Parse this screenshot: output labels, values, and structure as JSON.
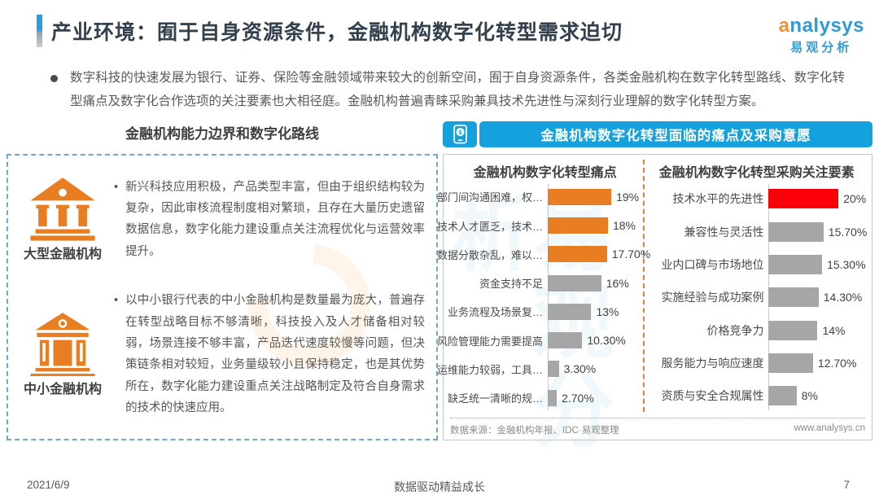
{
  "page": {
    "title": "产业环境：囿于自身资源条件，金融机构数字化转型需求迫切",
    "intro": "数字科技的快速发展为银行、证券、保险等金融领域带来较大的创新空间，囿于自身资源条件，各类金融机构在数字化转型路线、数字化转型痛点及数字化合作选项的关注要素也大相径庭。金融机构普遍青睐采购兼具技术先进性与深刻行业理解的数字化转型方案。",
    "footer": {
      "date": "2021/6/9",
      "slogan": "数据驱动精益成长",
      "page_number": "7"
    }
  },
  "logo": {
    "brand": "analysys",
    "brand_cn": "易观分析",
    "watermark": "易观分析"
  },
  "left_section": {
    "title": "金融机构能力边界和数字化路线",
    "items": [
      {
        "icon": "bank-large-icon",
        "label": "大型金融机构",
        "text": "新兴科技应用积极，产品类型丰富，但由于组织结构较为复杂，因此审核流程制度相对繁琐，且存在大量历史遗留数据信息，数字化能力建设重点关注流程优化与运营效率提升。"
      },
      {
        "icon": "bank-small-icon",
        "label": "中小金融机构",
        "text": "以中小银行代表的中小金融机构是数量最为庞大，普遍存在转型战略目标不够清晰，科技投入及人才储备相对较弱，场景连接不够丰富，产品迭代速度较慢等问题，但决策链条相对较短，业务量级较小且保持稳定，也是其优势所在，数字化能力建设重点关注战略制定及符合自身需求的技术的快速应用。"
      }
    ]
  },
  "right_section": {
    "header": "金融机构数字化转型面临的痛点及采购意愿",
    "source": "数据来源：金融机构年报、IDC·易观整理",
    "website": "www.analysys.cn"
  },
  "colors": {
    "accent_blue": "#14A1DD",
    "title_navy": "#33404E",
    "orange": "#E87D21",
    "bar_orange": "#E87D21",
    "bar_gray": "#A6A6A6",
    "bar_red": "#FB0007",
    "dashed_border_blue": "#6FA7D7",
    "divider_orange": "#ED7D31"
  },
  "chart_data": [
    {
      "type": "bar",
      "orientation": "horizontal",
      "title": "金融机构数字化转型痛点",
      "categories": [
        "部门间沟通困难，权…",
        "技术人才匮乏，技术…",
        "数据分散杂乱，难以…",
        "资金支持不足",
        "业务流程及场景复…",
        "风险管理能力需要提高",
        "运维能力较弱，工具…",
        "缺乏统一清晰的规…"
      ],
      "values": [
        19,
        18,
        17.7,
        16,
        13,
        10.3,
        3.3,
        2.7
      ],
      "labels": [
        "19%",
        "18%",
        "17.70%",
        "16%",
        "13%",
        "10.30%",
        "3.30%",
        "2.70%"
      ],
      "bar_colors": [
        "#E87D21",
        "#E87D21",
        "#E87D21",
        "#A6A6A6",
        "#A6A6A6",
        "#A6A6A6",
        "#A6A6A6",
        "#A6A6A6"
      ],
      "xlim": [
        0,
        20
      ],
      "grid": false,
      "legend": false
    },
    {
      "type": "bar",
      "orientation": "horizontal",
      "title": "金融机构数字化转型采购关注要素",
      "categories": [
        "技术水平的先进性",
        "兼容性与灵活性",
        "业内口碑与市场地位",
        "实施经验与成功案例",
        "价格竞争力",
        "服务能力与响应速度",
        "资质与安全合规属性"
      ],
      "values": [
        20,
        15.7,
        15.3,
        14.3,
        14,
        12.7,
        8
      ],
      "labels": [
        "20%",
        "15.70%",
        "15.30%",
        "14.30%",
        "14%",
        "12.70%",
        "8%"
      ],
      "bar_colors": [
        "#FB0007",
        "#A6A6A6",
        "#A6A6A6",
        "#A6A6A6",
        "#A6A6A6",
        "#A6A6A6",
        "#A6A6A6"
      ],
      "xlim": [
        0,
        20
      ],
      "grid": false,
      "legend": false
    }
  ]
}
